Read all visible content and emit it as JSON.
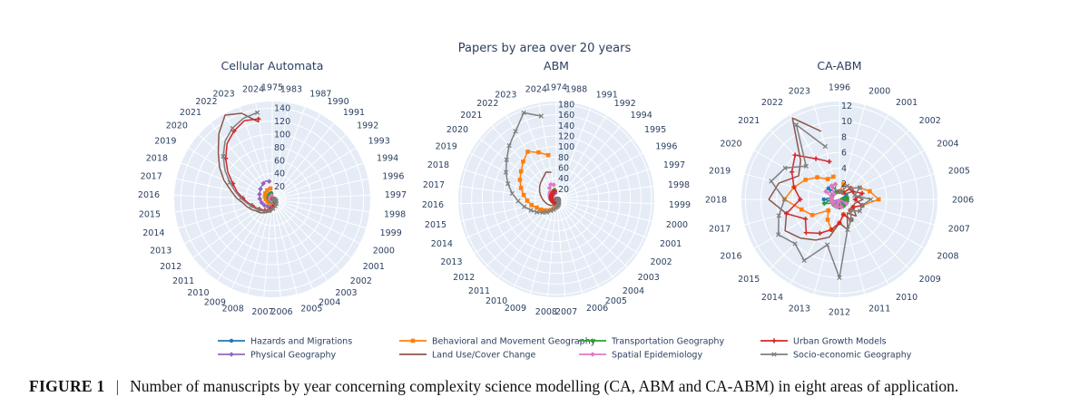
{
  "figure_title": "Papers by area over 20 years",
  "caption": {
    "label": "FIGURE 1",
    "separator": "|",
    "text": "Number of manuscripts by year concerning complexity science modelling (CA, ABM and CA-ABM) in eight areas of application."
  },
  "colors": {
    "background": "#e5ecf6",
    "grid": "#ffffff",
    "text": "#2a3f5f"
  },
  "chart_data": [
    {
      "type": "polar-line",
      "title": "Cellular Automata",
      "radial_ticks": [
        20,
        40,
        60,
        80,
        100,
        120,
        140
      ],
      "radial_range": [
        0,
        150
      ],
      "categories": [
        "1975",
        "1983",
        "1987",
        "1990",
        "1991",
        "1992",
        "1993",
        "1994",
        "1996",
        "1997",
        "1998",
        "1999",
        "2000",
        "2001",
        "2002",
        "2003",
        "2004",
        "2005",
        "2006",
        "2007",
        "2008",
        "2009",
        "2010",
        "2011",
        "2012",
        "2013",
        "2014",
        "2015",
        "2016",
        "2017",
        "2018",
        "2019",
        "2020",
        "2021",
        "2022",
        "2023",
        "2024"
      ],
      "series": [
        {
          "name": "Hazards and Migrations",
          "values": [
            0,
            0,
            0,
            0,
            0,
            0,
            0,
            0,
            0,
            1,
            0,
            1,
            1,
            1,
            2,
            1,
            2,
            2,
            2,
            3,
            3,
            3,
            4,
            3,
            4,
            5,
            5,
            6,
            6,
            7,
            7,
            8,
            8,
            9,
            9,
            10,
            10
          ]
        },
        {
          "name": "Physical Geography",
          "values": [
            0,
            0,
            1,
            0,
            1,
            1,
            2,
            2,
            3,
            3,
            4,
            5,
            5,
            6,
            6,
            7,
            7,
            8,
            9,
            10,
            12,
            12,
            13,
            14,
            15,
            16,
            17,
            18,
            19,
            20,
            21,
            22,
            24,
            26,
            28,
            30,
            28
          ]
        },
        {
          "name": "Behavioral and Movement Geography",
          "values": [
            0,
            0,
            0,
            0,
            0,
            0,
            0,
            0,
            0,
            0,
            1,
            1,
            1,
            2,
            2,
            2,
            3,
            3,
            4,
            4,
            5,
            5,
            6,
            6,
            7,
            8,
            8,
            9,
            10,
            11,
            12,
            13,
            14,
            15,
            16,
            18,
            17
          ]
        },
        {
          "name": "Land Use/Cover Change",
          "values": [
            0,
            0,
            0,
            0,
            1,
            1,
            2,
            2,
            3,
            4,
            5,
            6,
            7,
            8,
            9,
            10,
            12,
            13,
            15,
            18,
            20,
            22,
            25,
            28,
            30,
            35,
            40,
            45,
            55,
            65,
            80,
            95,
            110,
            130,
            148,
            140,
            120
          ]
        },
        {
          "name": "Transportation Geography",
          "values": [
            0,
            0,
            0,
            0,
            0,
            0,
            0,
            0,
            0,
            1,
            0,
            1,
            1,
            1,
            1,
            2,
            2,
            2,
            2,
            2,
            3,
            3,
            3,
            3,
            4,
            4,
            4,
            5,
            5,
            6,
            6,
            7,
            7,
            8,
            8,
            9,
            9
          ]
        },
        {
          "name": "Spatial Epidemiology",
          "values": [
            0,
            0,
            0,
            0,
            0,
            0,
            0,
            0,
            0,
            0,
            0,
            0,
            0,
            0,
            0,
            1,
            1,
            1,
            1,
            1,
            1,
            2,
            2,
            2,
            2,
            2,
            3,
            3,
            3,
            3,
            3,
            4,
            4,
            5,
            5,
            5,
            6
          ]
        },
        {
          "name": "Urban Growth Models",
          "values": [
            0,
            0,
            0,
            0,
            1,
            1,
            1,
            2,
            2,
            3,
            4,
            4,
            5,
            6,
            7,
            8,
            9,
            10,
            12,
            14,
            16,
            18,
            20,
            22,
            25,
            28,
            32,
            38,
            45,
            55,
            65,
            80,
            95,
            110,
            120,
            128,
            125
          ]
        },
        {
          "name": "Socio-economic Geography",
          "values": [
            0,
            0,
            0,
            0,
            1,
            1,
            2,
            2,
            3,
            4,
            5,
            6,
            7,
            8,
            9,
            10,
            11,
            12,
            14,
            16,
            18,
            20,
            22,
            24,
            27,
            30,
            34,
            40,
            48,
            58,
            70,
            85,
            100,
            115,
            125,
            132,
            135
          ]
        }
      ]
    },
    {
      "type": "polar-line",
      "title": "ABM",
      "radial_ticks": [
        20,
        40,
        60,
        80,
        100,
        120,
        140,
        160,
        180
      ],
      "radial_range": [
        0,
        185
      ],
      "categories": [
        "1974",
        "1988",
        "1991",
        "1992",
        "1994",
        "1995",
        "1996",
        "1997",
        "1998",
        "1999",
        "2000",
        "2001",
        "2002",
        "2003",
        "2004",
        "2005",
        "2006",
        "2007",
        "2008",
        "2009",
        "2010",
        "2011",
        "2012",
        "2013",
        "2014",
        "2015",
        "2016",
        "2017",
        "2018",
        "2019",
        "2020",
        "2021",
        "2022",
        "2023",
        "2024"
      ],
      "series": [
        {
          "name": "Hazards and Migrations",
          "values": [
            0,
            0,
            0,
            0,
            1,
            1,
            1,
            1,
            2,
            2,
            2,
            3,
            3,
            3,
            4,
            4,
            5,
            5,
            5,
            6,
            6,
            7,
            7,
            8,
            8,
            9,
            9,
            10,
            10,
            11,
            11,
            12,
            12,
            13,
            13
          ]
        },
        {
          "name": "Physical Geography",
          "values": [
            0,
            0,
            0,
            0,
            0,
            1,
            1,
            1,
            1,
            2,
            2,
            2,
            3,
            3,
            3,
            4,
            4,
            4,
            5,
            5,
            5,
            6,
            6,
            7,
            7,
            8,
            8,
            9,
            9,
            10,
            10,
            11,
            11,
            12,
            12
          ]
        },
        {
          "name": "Behavioral and Movement Geography",
          "values": [
            0,
            0,
            0,
            0,
            1,
            1,
            1,
            2,
            2,
            3,
            3,
            4,
            5,
            6,
            7,
            8,
            10,
            12,
            15,
            18,
            22,
            26,
            30,
            35,
            40,
            48,
            55,
            62,
            70,
            78,
            85,
            95,
            105,
            95,
            85
          ]
        },
        {
          "name": "Land Use/Cover Change",
          "values": [
            0,
            0,
            0,
            1,
            1,
            1,
            2,
            2,
            2,
            3,
            3,
            4,
            4,
            5,
            5,
            6,
            7,
            8,
            9,
            10,
            12,
            14,
            16,
            18,
            20,
            22,
            25,
            28,
            32,
            36,
            40,
            44,
            48,
            55,
            52
          ]
        },
        {
          "name": "Transportation Geography",
          "values": [
            0,
            0,
            0,
            0,
            0,
            1,
            1,
            1,
            1,
            2,
            2,
            2,
            3,
            3,
            3,
            4,
            4,
            5,
            5,
            6,
            6,
            7,
            7,
            8,
            8,
            9,
            10,
            11,
            12,
            13,
            14,
            15,
            16,
            17,
            18
          ]
        },
        {
          "name": "Spatial Epidemiology",
          "values": [
            0,
            0,
            0,
            0,
            0,
            0,
            0,
            0,
            1,
            1,
            1,
            1,
            2,
            2,
            2,
            3,
            3,
            3,
            4,
            4,
            5,
            5,
            6,
            6,
            7,
            8,
            9,
            10,
            12,
            14,
            16,
            18,
            25,
            30,
            28
          ]
        },
        {
          "name": "Urban Growth Models",
          "values": [
            0,
            0,
            0,
            0,
            1,
            1,
            1,
            1,
            2,
            2,
            2,
            3,
            3,
            3,
            4,
            4,
            4,
            5,
            5,
            6,
            6,
            7,
            7,
            8,
            8,
            9,
            9,
            10,
            10,
            11,
            12,
            13,
            14,
            15,
            16
          ]
        },
        {
          "name": "Socio-economic Geography",
          "values": [
            0,
            0,
            0,
            0,
            1,
            1,
            2,
            2,
            3,
            3,
            4,
            5,
            6,
            7,
            8,
            10,
            12,
            14,
            16,
            20,
            24,
            30,
            36,
            44,
            52,
            62,
            72,
            84,
            96,
            108,
            120,
            135,
            150,
            175,
            160
          ]
        }
      ]
    },
    {
      "type": "polar-line",
      "title": "CA-ABM",
      "radial_ticks": [
        2,
        4,
        6,
        8,
        10,
        12
      ],
      "radial_range": [
        0,
        12.5
      ],
      "categories": [
        "1996",
        "2000",
        "2001",
        "2002",
        "2004",
        "2005",
        "2006",
        "2007",
        "2008",
        "2009",
        "2010",
        "2011",
        "2012",
        "2013",
        "2014",
        "2015",
        "2016",
        "2017",
        "2018",
        "2019",
        "2020",
        "2021",
        "2022",
        "2023"
      ],
      "series": [
        {
          "name": "Hazards and Migrations",
          "values": [
            0,
            0,
            0,
            0,
            1,
            0,
            1,
            0,
            1,
            0,
            1,
            0,
            1,
            1,
            0,
            1,
            1,
            1,
            2,
            1,
            1,
            2,
            1,
            1
          ]
        },
        {
          "name": "Physical Geography",
          "values": [
            0,
            0,
            0,
            0,
            0,
            1,
            0,
            1,
            0,
            1,
            0,
            1,
            1,
            0,
            1,
            1,
            0,
            1,
            1,
            1,
            1,
            1,
            2,
            1
          ]
        },
        {
          "name": "Behavioral and Movement Geography",
          "values": [
            1,
            2,
            1,
            2,
            3,
            4,
            5,
            3,
            2,
            2,
            3,
            2,
            3,
            4,
            3,
            2,
            4,
            5,
            7,
            6,
            5,
            4,
            3,
            3
          ]
        },
        {
          "name": "Land Use/Cover Change",
          "values": [
            1,
            1,
            1,
            1,
            2,
            2,
            3,
            2,
            2,
            3,
            2,
            4,
            3,
            5,
            6,
            7,
            8,
            7,
            9,
            8,
            6,
            7,
            12,
            9
          ]
        },
        {
          "name": "Transportation Geography",
          "values": [
            0,
            0,
            0,
            0,
            0,
            1,
            0,
            1,
            1,
            0,
            1,
            1,
            1,
            0,
            1,
            1,
            1,
            2,
            1,
            1,
            1,
            1,
            1,
            2
          ]
        },
        {
          "name": "Spatial Epidemiology",
          "values": [
            0,
            0,
            0,
            0,
            0,
            0,
            0,
            0,
            1,
            0,
            0,
            1,
            0,
            1,
            1,
            0,
            1,
            1,
            1,
            1,
            2,
            1,
            2,
            2
          ]
        },
        {
          "name": "Urban Growth Models",
          "values": [
            1,
            1,
            1,
            2,
            2,
            3,
            2,
            3,
            2,
            2,
            3,
            2,
            3,
            4,
            5,
            6,
            5,
            7,
            5,
            6,
            7,
            8,
            6,
            5
          ]
        },
        {
          "name": "Socio-economic Geography",
          "values": [
            1,
            1,
            2,
            2,
            3,
            2,
            4,
            3,
            3,
            2,
            3,
            4,
            10,
            6,
            9,
            8,
            9,
            8,
            7,
            9,
            8,
            6,
            11,
            7
          ]
        }
      ]
    }
  ],
  "legend": {
    "placement": "bottom",
    "items": [
      {
        "name": "Hazards and Migrations",
        "color": "#1f77b4",
        "symbol": "circle"
      },
      {
        "name": "Behavioral and Movement Geography",
        "color": "#ff7f0e",
        "symbol": "square"
      },
      {
        "name": "Transportation Geography",
        "color": "#2ca02c",
        "symbol": "diamond"
      },
      {
        "name": "Urban Growth Models",
        "color": "#d62728",
        "symbol": "cross"
      },
      {
        "name": "Physical Geography",
        "color": "#9467bd",
        "symbol": "diamond"
      },
      {
        "name": "Land Use/Cover Change",
        "color": "#8c564b",
        "symbol": "none"
      },
      {
        "name": "Spatial Epidemiology",
        "color": "#e377c2",
        "symbol": "diamond"
      },
      {
        "name": "Socio-economic Geography",
        "color": "#7f7f7f",
        "symbol": "x"
      }
    ]
  }
}
